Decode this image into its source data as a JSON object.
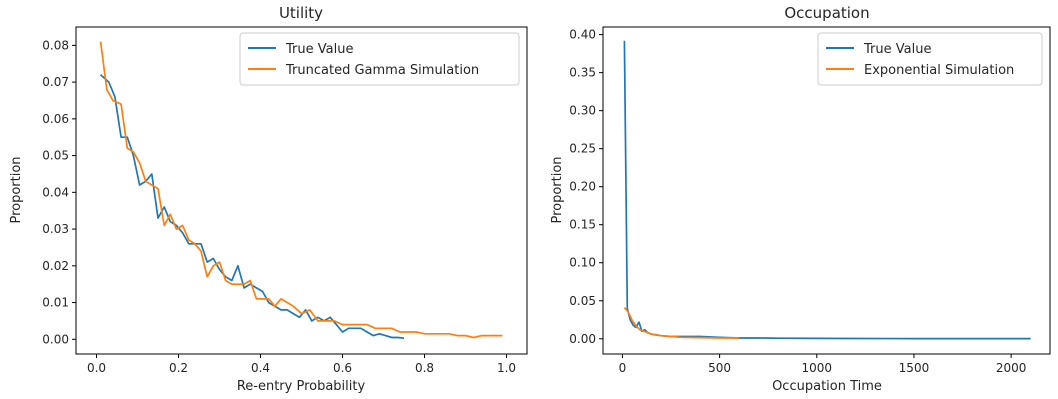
{
  "colors": {
    "true_value": "#1f77b4",
    "simulation": "#ff7f0e",
    "axis": "#000000",
    "legend_border": "#cccccc"
  },
  "chart_data": [
    {
      "type": "line",
      "title": "Utility",
      "xlabel": "Re-entry Probability",
      "ylabel": "Proportion",
      "xlim": [
        -0.05,
        1.05
      ],
      "ylim": [
        -0.004,
        0.085
      ],
      "xticks": [
        0.0,
        0.2,
        0.4,
        0.6,
        0.8,
        1.0
      ],
      "xtick_labels": [
        "0.0",
        "0.2",
        "0.4",
        "0.6",
        "0.8",
        "1.0"
      ],
      "yticks": [
        0.0,
        0.01,
        0.02,
        0.03,
        0.04,
        0.05,
        0.06,
        0.07,
        0.08
      ],
      "ytick_labels": [
        "0.00",
        "0.01",
        "0.02",
        "0.03",
        "0.04",
        "0.05",
        "0.06",
        "0.07",
        "0.08"
      ],
      "legend_position": "top-right",
      "grid": false,
      "series": [
        {
          "name": "True Value",
          "x": [
            0.01,
            0.03,
            0.045,
            0.06,
            0.075,
            0.09,
            0.105,
            0.12,
            0.135,
            0.15,
            0.165,
            0.18,
            0.195,
            0.21,
            0.225,
            0.24,
            0.255,
            0.27,
            0.285,
            0.3,
            0.315,
            0.33,
            0.345,
            0.36,
            0.375,
            0.39,
            0.405,
            0.42,
            0.435,
            0.45,
            0.465,
            0.48,
            0.495,
            0.51,
            0.525,
            0.54,
            0.555,
            0.57,
            0.585,
            0.6,
            0.615,
            0.63,
            0.645,
            0.66,
            0.675,
            0.69,
            0.705,
            0.72,
            0.735,
            0.75
          ],
          "y": [
            0.072,
            0.07,
            0.066,
            0.055,
            0.055,
            0.05,
            0.042,
            0.043,
            0.045,
            0.033,
            0.036,
            0.032,
            0.031,
            0.029,
            0.026,
            0.026,
            0.026,
            0.021,
            0.022,
            0.019,
            0.017,
            0.016,
            0.02,
            0.014,
            0.015,
            0.014,
            0.013,
            0.01,
            0.009,
            0.008,
            0.008,
            0.007,
            0.006,
            0.008,
            0.005,
            0.006,
            0.005,
            0.006,
            0.004,
            0.002,
            0.003,
            0.003,
            0.003,
            0.002,
            0.001,
            0.0015,
            0.001,
            0.0005,
            0.0005,
            0.0003
          ]
        },
        {
          "name": "Truncated Gamma Simulation",
          "x": [
            0.01,
            0.025,
            0.04,
            0.06,
            0.075,
            0.09,
            0.105,
            0.12,
            0.135,
            0.15,
            0.165,
            0.18,
            0.195,
            0.21,
            0.225,
            0.24,
            0.255,
            0.27,
            0.285,
            0.3,
            0.315,
            0.33,
            0.345,
            0.36,
            0.375,
            0.39,
            0.405,
            0.42,
            0.435,
            0.45,
            0.48,
            0.5,
            0.52,
            0.54,
            0.56,
            0.58,
            0.6,
            0.62,
            0.64,
            0.66,
            0.68,
            0.7,
            0.72,
            0.74,
            0.76,
            0.78,
            0.8,
            0.82,
            0.84,
            0.86,
            0.88,
            0.9,
            0.92,
            0.94,
            0.96,
            0.98,
            0.99
          ],
          "y": [
            0.081,
            0.068,
            0.065,
            0.064,
            0.052,
            0.051,
            0.048,
            0.043,
            0.042,
            0.041,
            0.031,
            0.034,
            0.03,
            0.031,
            0.027,
            0.026,
            0.024,
            0.017,
            0.02,
            0.021,
            0.016,
            0.015,
            0.015,
            0.015,
            0.016,
            0.011,
            0.011,
            0.011,
            0.009,
            0.011,
            0.009,
            0.007,
            0.008,
            0.005,
            0.005,
            0.005,
            0.004,
            0.004,
            0.004,
            0.004,
            0.003,
            0.003,
            0.003,
            0.002,
            0.002,
            0.002,
            0.0015,
            0.0015,
            0.0015,
            0.0015,
            0.001,
            0.001,
            0.0005,
            0.001,
            0.001,
            0.001,
            0.001
          ]
        }
      ]
    },
    {
      "type": "line",
      "title": "Occupation",
      "xlabel": "Occupation Time",
      "ylabel": "Proportion",
      "xlim": [
        -100,
        2200
      ],
      "ylim": [
        -0.02,
        0.41
      ],
      "xticks": [
        0,
        500,
        1000,
        1500,
        2000
      ],
      "xtick_labels": [
        "0",
        "500",
        "1000",
        "1500",
        "2000"
      ],
      "yticks": [
        0.0,
        0.05,
        0.1,
        0.15,
        0.2,
        0.25,
        0.3,
        0.35,
        0.4
      ],
      "ytick_labels": [
        "0.00",
        "0.05",
        "0.10",
        "0.15",
        "0.20",
        "0.25",
        "0.30",
        "0.35",
        "0.40"
      ],
      "legend_position": "top-right",
      "grid": false,
      "series": [
        {
          "name": "True Value",
          "x": [
            10,
            25,
            40,
            55,
            70,
            85,
            100,
            115,
            130,
            150,
            175,
            200,
            250,
            300,
            350,
            400,
            500,
            600,
            700,
            800,
            1000,
            1200,
            1500,
            1800,
            2000,
            2100
          ],
          "y": [
            0.392,
            0.04,
            0.025,
            0.018,
            0.015,
            0.022,
            0.01,
            0.012,
            0.008,
            0.006,
            0.005,
            0.004,
            0.003,
            0.003,
            0.003,
            0.003,
            0.002,
            0.001,
            0.001,
            0.0008,
            0.0005,
            0.0004,
            0.0003,
            0.0002,
            0.0002,
            0.0002
          ]
        },
        {
          "name": "Exponential Simulation",
          "x": [
            10,
            30,
            50,
            70,
            90,
            120,
            150,
            200,
            250,
            300,
            400,
            500,
            600
          ],
          "y": [
            0.041,
            0.035,
            0.024,
            0.017,
            0.012,
            0.009,
            0.006,
            0.004,
            0.003,
            0.002,
            0.0015,
            0.001,
            0.001
          ]
        }
      ]
    }
  ]
}
